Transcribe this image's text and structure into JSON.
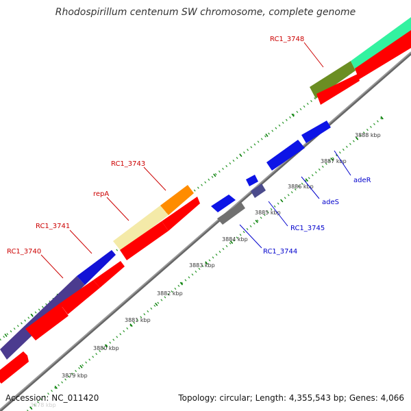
{
  "title": "Rhodospirillum centenum SW chromosome, complete genome",
  "accession_text": "Accession: NC_011420",
  "summary_text": "Topology: circular; Length: 4,355,543 bp; Genes: 4,066",
  "colors": {
    "forward_label": "#cc0000",
    "reverse_label": "#0000cc",
    "cds": "#ff0000",
    "tick_major": "#007a00",
    "tick_minor": "#2f9a2f",
    "backbone": "#999999",
    "backbone_shadow": "#666666"
  },
  "ticks": [
    {
      "label": "3878 kbp"
    },
    {
      "label": "3879 kbp"
    },
    {
      "label": "3880 kbp"
    },
    {
      "label": "3881 kbp"
    },
    {
      "label": "3882 kbp"
    },
    {
      "label": "3883 kbp"
    },
    {
      "label": "3884 kbp"
    },
    {
      "label": "3885 kbp"
    },
    {
      "label": "3886 kbp"
    },
    {
      "label": "3887 kbp"
    },
    {
      "label": "3888 kbp"
    }
  ],
  "genes": {
    "forward": [
      {
        "label": "RC1_3740",
        "color": "#4b3b8f"
      },
      {
        "label": "RC1_3741",
        "color": "#1212d6"
      },
      {
        "label": "repA",
        "color": "#f4eaa8"
      },
      {
        "label": "RC1_3743",
        "color": "#ff8c00"
      },
      {
        "label": "RC1_3748",
        "color": "#6b8e23"
      },
      {
        "label": "",
        "color": "#33f2a0"
      }
    ],
    "reverse": [
      {
        "label": "RC1_3744",
        "color": "#707070"
      },
      {
        "label": "",
        "color": "#0d14e6"
      },
      {
        "label": "RC1_3745",
        "color": "#4b4b8c"
      },
      {
        "label": "",
        "color": "#0d14e6"
      },
      {
        "label": "adeS",
        "color": "#0d14e6"
      },
      {
        "label": "adeR",
        "color": "#0d14e6"
      }
    ]
  }
}
